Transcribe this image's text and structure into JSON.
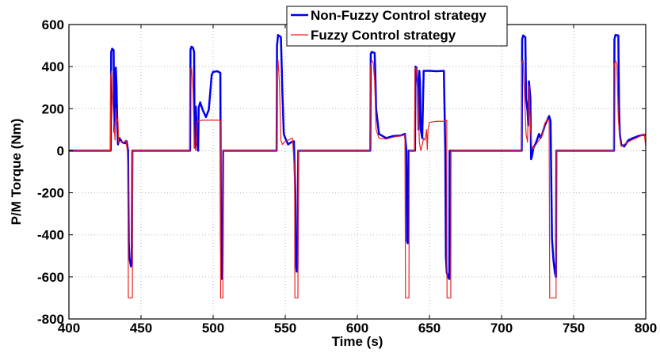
{
  "chart_data": {
    "type": "line",
    "title": "",
    "xlabel": "Time (s)",
    "ylabel": "P/M Torque (Nm)",
    "xlim": [
      400,
      800
    ],
    "ylim": [
      -800,
      600
    ],
    "xticks": [
      400,
      450,
      500,
      550,
      600,
      650,
      700,
      750,
      800
    ],
    "yticks": [
      -800,
      -600,
      -400,
      -200,
      0,
      200,
      400,
      600
    ],
    "grid": true,
    "legend_position": "top-center",
    "series": [
      {
        "name": "Non-Fuzzy Control strategy",
        "color": "#0000ee",
        "line_width": 2.5,
        "points": [
          [
            400,
            0
          ],
          [
            429,
            0
          ],
          [
            429.3,
            470
          ],
          [
            430,
            485
          ],
          [
            431,
            478
          ],
          [
            431.5,
            90
          ],
          [
            432,
            210
          ],
          [
            432.5,
            395
          ],
          [
            433,
            310
          ],
          [
            433.5,
            140
          ],
          [
            434,
            30
          ],
          [
            435,
            60
          ],
          [
            437,
            40
          ],
          [
            439,
            35
          ],
          [
            440,
            45
          ],
          [
            441,
            0
          ],
          [
            441.5,
            -440
          ],
          [
            442,
            -510
          ],
          [
            443,
            -550
          ],
          [
            443.6,
            -540
          ],
          [
            444,
            0
          ],
          [
            484,
            0
          ],
          [
            484.3,
            480
          ],
          [
            485,
            495
          ],
          [
            486,
            490
          ],
          [
            486.8,
            470
          ],
          [
            487.2,
            15
          ],
          [
            488,
            210
          ],
          [
            489,
            40
          ],
          [
            489.6,
            0
          ],
          [
            490,
            205
          ],
          [
            491,
            230
          ],
          [
            493,
            190
          ],
          [
            495,
            160
          ],
          [
            497,
            195
          ],
          [
            499,
            360
          ],
          [
            500,
            375
          ],
          [
            503,
            378
          ],
          [
            505,
            370
          ],
          [
            505.4,
            -420
          ],
          [
            506,
            -610
          ],
          [
            506.5,
            -580
          ],
          [
            507,
            0
          ],
          [
            544,
            0
          ],
          [
            544.3,
            500
          ],
          [
            545,
            550
          ],
          [
            547,
            540
          ],
          [
            547.6,
            390
          ],
          [
            548,
            280
          ],
          [
            549,
            80
          ],
          [
            550,
            60
          ],
          [
            552,
            30
          ],
          [
            554,
            40
          ],
          [
            556,
            45
          ],
          [
            557,
            -200
          ],
          [
            557.4,
            -540
          ],
          [
            558,
            -575
          ],
          [
            558.5,
            -560
          ],
          [
            559,
            0
          ],
          [
            609,
            0
          ],
          [
            609.3,
            460
          ],
          [
            610,
            470
          ],
          [
            612,
            465
          ],
          [
            612.5,
            360
          ],
          [
            613,
            200
          ],
          [
            615,
            80
          ],
          [
            620,
            60
          ],
          [
            625,
            70
          ],
          [
            630,
            72
          ],
          [
            633,
            80
          ],
          [
            634,
            0
          ],
          [
            634.4,
            -430
          ],
          [
            635,
            -440
          ],
          [
            635.6,
            0
          ],
          [
            640,
            0
          ],
          [
            640.3,
            400
          ],
          [
            641,
            395
          ],
          [
            642,
            300
          ],
          [
            642.5,
            100
          ],
          [
            643,
            380
          ],
          [
            643.5,
            320
          ],
          [
            644,
            100
          ],
          [
            645,
            60
          ],
          [
            646,
            380
          ],
          [
            650,
            380
          ],
          [
            655,
            378
          ],
          [
            660,
            380
          ],
          [
            661,
            0
          ],
          [
            661.4,
            -500
          ],
          [
            662,
            -580
          ],
          [
            663,
            -600
          ],
          [
            663.8,
            -610
          ],
          [
            664,
            0
          ],
          [
            714,
            0
          ],
          [
            714.3,
            530
          ],
          [
            715,
            548
          ],
          [
            716.5,
            540
          ],
          [
            717,
            250
          ],
          [
            718,
            190
          ],
          [
            718.5,
            120
          ],
          [
            719,
            330
          ],
          [
            720,
            250
          ],
          [
            720.5,
            -40
          ],
          [
            721,
            -30
          ],
          [
            722,
            10
          ],
          [
            724,
            40
          ],
          [
            726,
            80
          ],
          [
            727,
            60
          ],
          [
            728,
            75
          ],
          [
            730,
            120
          ],
          [
            732,
            150
          ],
          [
            733,
            165
          ],
          [
            734,
            140
          ],
          [
            735,
            -420
          ],
          [
            736,
            -520
          ],
          [
            737,
            -580
          ],
          [
            737.8,
            -600
          ],
          [
            738,
            0
          ],
          [
            778,
            0
          ],
          [
            778.3,
            530
          ],
          [
            779,
            550
          ],
          [
            781,
            548
          ],
          [
            781.5,
            200
          ],
          [
            782,
            80
          ],
          [
            783,
            30
          ],
          [
            785,
            20
          ],
          [
            788,
            50
          ],
          [
            791,
            60
          ],
          [
            795,
            70
          ],
          [
            798,
            75
          ],
          [
            800,
            75
          ]
        ]
      },
      {
        "name": "Fuzzy Control strategy",
        "color": "#ee2222",
        "line_width": 1.2,
        "points": [
          [
            400,
            0
          ],
          [
            428.8,
            0
          ],
          [
            429,
            360
          ],
          [
            429.6,
            380
          ],
          [
            430,
            280
          ],
          [
            431,
            150
          ],
          [
            432,
            50
          ],
          [
            432.5,
            200
          ],
          [
            433,
            140
          ],
          [
            434,
            150
          ],
          [
            434.5,
            40
          ],
          [
            436,
            45
          ],
          [
            438,
            40
          ],
          [
            439.5,
            50
          ],
          [
            440.5,
            0
          ],
          [
            441,
            -160
          ],
          [
            441.2,
            -700
          ],
          [
            444,
            -700
          ],
          [
            444.2,
            0
          ],
          [
            483.8,
            0
          ],
          [
            484,
            390
          ],
          [
            485,
            395
          ],
          [
            486,
            300
          ],
          [
            487,
            20
          ],
          [
            488,
            0
          ],
          [
            489,
            140
          ],
          [
            492,
            145
          ],
          [
            500,
            145
          ],
          [
            505,
            145
          ],
          [
            505.2,
            -700
          ],
          [
            506.8,
            -700
          ],
          [
            507,
            0
          ],
          [
            543.8,
            0
          ],
          [
            544,
            330
          ],
          [
            545,
            430
          ],
          [
            546,
            320
          ],
          [
            547,
            50
          ],
          [
            548,
            30
          ],
          [
            550,
            45
          ],
          [
            552,
            50
          ],
          [
            555,
            60
          ],
          [
            556.5,
            -100
          ],
          [
            556.7,
            -700
          ],
          [
            558.8,
            -700
          ],
          [
            559,
            0
          ],
          [
            608.8,
            0
          ],
          [
            609,
            390
          ],
          [
            610,
            430
          ],
          [
            611,
            420
          ],
          [
            612,
            330
          ],
          [
            613,
            100
          ],
          [
            615,
            60
          ],
          [
            620,
            55
          ],
          [
            625,
            65
          ],
          [
            630,
            70
          ],
          [
            633,
            75
          ],
          [
            633.4,
            -700
          ],
          [
            635.8,
            -700
          ],
          [
            636,
            0
          ],
          [
            639.8,
            0
          ],
          [
            640,
            395
          ],
          [
            641,
            390
          ],
          [
            642,
            280
          ],
          [
            643,
            40
          ],
          [
            644,
            0
          ],
          [
            645,
            30
          ],
          [
            646,
            60
          ],
          [
            647,
            50
          ],
          [
            648,
            100
          ],
          [
            648.5,
            5
          ],
          [
            649,
            100
          ],
          [
            650,
            135
          ],
          [
            655,
            140
          ],
          [
            660,
            140
          ],
          [
            662,
            145
          ],
          [
            662.2,
            -700
          ],
          [
            664.8,
            -700
          ],
          [
            665,
            0
          ],
          [
            713.8,
            0
          ],
          [
            714,
            420
          ],
          [
            715,
            430
          ],
          [
            716,
            250
          ],
          [
            717,
            80
          ],
          [
            718,
            40
          ],
          [
            719,
            310
          ],
          [
            720,
            120
          ],
          [
            721,
            20
          ],
          [
            722,
            10
          ],
          [
            725,
            40
          ],
          [
            728,
            70
          ],
          [
            730,
            130
          ],
          [
            732,
            150
          ],
          [
            733,
            145
          ],
          [
            733.4,
            -700
          ],
          [
            737.8,
            -700
          ],
          [
            738,
            0
          ],
          [
            777.8,
            0
          ],
          [
            778,
            400
          ],
          [
            779,
            430
          ],
          [
            780,
            410
          ],
          [
            781,
            150
          ],
          [
            782,
            60
          ],
          [
            783,
            20
          ],
          [
            785,
            30
          ],
          [
            790,
            50
          ],
          [
            795,
            65
          ],
          [
            799,
            80
          ],
          [
            800,
            20
          ]
        ]
      }
    ]
  }
}
